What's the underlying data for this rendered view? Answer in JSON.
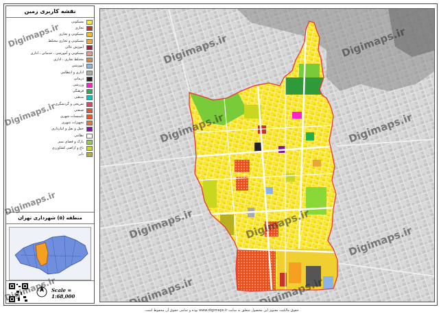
{
  "legend_title": "نقشه کاربری زمین",
  "legend_items": [
    {
      "label": "مسکونی",
      "color": "#f5ee3a"
    },
    {
      "label": "تجاری",
      "color": "#c8322a"
    },
    {
      "label": "مسکونی و تجاری",
      "color": "#f0c020"
    },
    {
      "label": "مسکونی و تجاری مختلط",
      "color": "#e8a838"
    },
    {
      "label": "آموزش عالی",
      "color": "#b2183a"
    },
    {
      "label": "مسکونی و آموزشی ، خدماتی ، اداری",
      "color": "#e09a90"
    },
    {
      "label": "مختلط تجاری ، اداری",
      "color": "#d88a40"
    },
    {
      "label": "آموزشی",
      "color": "#8ab4e8"
    },
    {
      "label": "اداری و انتظامی",
      "color": "#a8a8a8"
    },
    {
      "label": "درمانی",
      "color": "#222222"
    },
    {
      "label": "ورزشی",
      "color": "#ff22cc"
    },
    {
      "label": "فرهنگی",
      "color": "#25b04a"
    },
    {
      "label": "مذهبی",
      "color": "#00c8c8"
    },
    {
      "label": "تفریحی و گردشگری",
      "color": "#c84f6a"
    },
    {
      "label": "صنعتی",
      "color": "#e05a2a"
    },
    {
      "label": "تاسیسات شهری",
      "color": "#e85a20"
    },
    {
      "label": "تجهیزات شهری",
      "color": "#f07030"
    },
    {
      "label": "حمل و نقل و انبارداری",
      "color": "#7a1a9a"
    },
    {
      "label": "نظامی",
      "color": "#ffffff"
    },
    {
      "label": "پارک و فضای سبز",
      "color": "#8ad838"
    },
    {
      "label": "باغ و اراضی کشاورزی",
      "color": "#c8d820"
    },
    {
      "label": "بایر",
      "color": "#b8b020"
    }
  ],
  "district_title": "منطقه (۵) شهرداری تهران",
  "scale_label": "Scale = 1:68,000",
  "north_label": "N",
  "watermark": "Digimaps.ir",
  "footer_text": "حقوق مالکیت معنوی این محصول متعلق به سایت www.digimaps.ir بوده و تمامی حقوق آن محفوظ است."
}
